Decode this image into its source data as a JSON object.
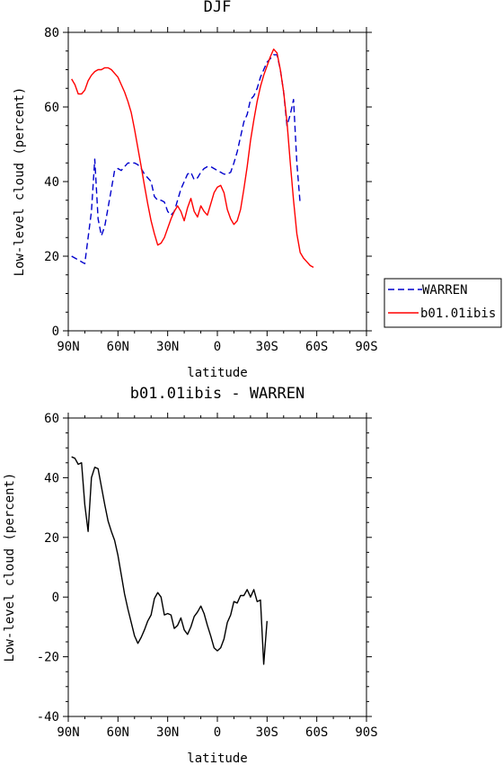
{
  "chart_data": [
    {
      "type": "line",
      "title": "DJF",
      "xlabel": "latitude",
      "ylabel": "Low-level cloud (percent)",
      "xlim": [
        90,
        -90
      ],
      "ylim": [
        0,
        80
      ],
      "x_ticks": [
        90,
        60,
        30,
        0,
        -30,
        -60,
        -90
      ],
      "x_tick_labels": [
        "90N",
        "60N",
        "30N",
        "0",
        "30S",
        "60S",
        "90S"
      ],
      "y_ticks": [
        0,
        20,
        40,
        60,
        80
      ],
      "y_tick_labels": [
        "0",
        "20",
        "40",
        "60",
        "80"
      ],
      "legend_position": "right",
      "series": [
        {
          "name": "WARREN",
          "color": "#0000cc",
          "dash": "dashed",
          "x": [
            88,
            84,
            80,
            76,
            74,
            72,
            70,
            68,
            66,
            64,
            62,
            60,
            58,
            56,
            54,
            52,
            50,
            48,
            46,
            44,
            42,
            40,
            38,
            36,
            34,
            32,
            30,
            28,
            26,
            24,
            22,
            20,
            18,
            16,
            14,
            12,
            10,
            8,
            6,
            4,
            2,
            0,
            -2,
            -4,
            -6,
            -8,
            -10,
            -12,
            -14,
            -16,
            -18,
            -20,
            -22,
            -24,
            -26,
            -28,
            -30,
            -32,
            -34,
            -36,
            -38,
            -40,
            -42,
            -44,
            -46,
            -48,
            -50,
            -52,
            -54,
            -56,
            -58,
            -60,
            -62,
            -64,
            -66,
            -68,
            -70,
            -72,
            -74,
            -76,
            -78
          ],
          "y": [
            20,
            19,
            18,
            32,
            46,
            30,
            25.5,
            28,
            33,
            38,
            43,
            43.5,
            43,
            44,
            45,
            45,
            45,
            44.5,
            43.5,
            42,
            41,
            40,
            36,
            35,
            35,
            34.5,
            32,
            31,
            32,
            35,
            38,
            40,
            42,
            42.5,
            40.5,
            41,
            42.5,
            43.5,
            44,
            44,
            43.5,
            43,
            42.5,
            42,
            42,
            42.5,
            45,
            48,
            52,
            56,
            58,
            62,
            63,
            65,
            68,
            70,
            72,
            73,
            74,
            74,
            70,
            64,
            55,
            58,
            62,
            45,
            34,
            null,
            null,
            null,
            null,
            null,
            null,
            null,
            null,
            null,
            null,
            null,
            null,
            null,
            null
          ]
        },
        {
          "name": "b01.01ibis",
          "color": "#ff0000",
          "dash": "solid",
          "x": [
            88,
            86,
            84,
            82,
            80,
            78,
            76,
            74,
            72,
            70,
            68,
            66,
            64,
            62,
            60,
            58,
            56,
            54,
            52,
            50,
            48,
            46,
            44,
            42,
            40,
            38,
            36,
            34,
            32,
            30,
            28,
            26,
            24,
            22,
            20,
            18,
            16,
            14,
            12,
            10,
            8,
            6,
            4,
            2,
            0,
            -2,
            -4,
            -6,
            -8,
            -10,
            -12,
            -14,
            -16,
            -18,
            -20,
            -22,
            -24,
            -26,
            -28,
            -30,
            -32,
            -34,
            -36,
            -38,
            -40,
            -42,
            -44,
            -46,
            -48,
            -50,
            -52,
            -54,
            -56,
            -58,
            -60,
            -62,
            -64,
            -66,
            -68,
            -70,
            -72,
            -74,
            -76,
            -78,
            -80,
            -82,
            -84,
            -86,
            -88
          ],
          "y": [
            67.5,
            66,
            63.5,
            63.5,
            64.5,
            67,
            68.5,
            69.5,
            70,
            70,
            70.5,
            70.5,
            70,
            69,
            68,
            66,
            64,
            61.5,
            58.5,
            54,
            49,
            44,
            39,
            34,
            29.5,
            26,
            23,
            23.5,
            25,
            27.5,
            30,
            32,
            33.5,
            32,
            29.5,
            33,
            35.5,
            32,
            30.5,
            33.5,
            32,
            31,
            34,
            37,
            38.5,
            39,
            37,
            32.5,
            30,
            28.5,
            29.5,
            32.5,
            38,
            44,
            51,
            56.5,
            61.5,
            65.5,
            68.5,
            71,
            73.5,
            75.5,
            74.5,
            70,
            64,
            56,
            45,
            35,
            26,
            21,
            19.5,
            18.5,
            17.5,
            17,
            null,
            null,
            null,
            null,
            null,
            null,
            null,
            null,
            null,
            null,
            null,
            null,
            null,
            null,
            null
          ]
        }
      ]
    },
    {
      "type": "line",
      "title": "b01.01ibis - WARREN",
      "xlabel": "latitude",
      "ylabel": "Low-level cloud (percent)",
      "xlim": [
        90,
        -90
      ],
      "ylim": [
        -40,
        60
      ],
      "x_ticks": [
        90,
        60,
        30,
        0,
        -30,
        -60,
        -90
      ],
      "x_tick_labels": [
        "90N",
        "60N",
        "30N",
        "0",
        "30S",
        "60S",
        "90S"
      ],
      "y_ticks": [
        -40,
        -20,
        0,
        20,
        40,
        60
      ],
      "y_tick_labels": [
        "-40",
        "-20",
        "0",
        "20",
        "40",
        "60"
      ],
      "series": [
        {
          "name": "",
          "color": "#000000",
          "dash": "solid",
          "x": [
            88,
            86,
            84,
            82,
            80,
            78,
            76,
            74,
            72,
            70,
            68,
            66,
            64,
            62,
            60,
            58,
            56,
            54,
            52,
            50,
            48,
            46,
            44,
            42,
            40,
            38,
            36,
            34,
            32,
            30,
            28,
            26,
            24,
            22,
            20,
            18,
            16,
            14,
            12,
            10,
            8,
            6,
            4,
            2,
            0,
            -2,
            -4,
            -6,
            -8,
            -10,
            -12,
            -14,
            -16,
            -18,
            -20,
            -22,
            -24,
            -26,
            -28,
            -30,
            -32,
            -34,
            -36,
            -38,
            -40,
            -42,
            -44,
            -46,
            -48,
            -50,
            -52,
            -54,
            -56,
            -58,
            -60,
            -62,
            -64,
            -66,
            -68,
            -70,
            -72,
            -74,
            -76,
            -78
          ],
          "y": [
            47,
            46.5,
            44.5,
            45,
            31,
            22,
            40,
            43.5,
            43,
            37,
            31,
            25.5,
            22,
            19,
            14,
            7.5,
            1,
            -4,
            -8.5,
            -13,
            -15.5,
            -13.5,
            -11,
            -8,
            -6,
            -0.5,
            1.5,
            0,
            -6,
            -5.5,
            -6,
            -10.5,
            -9.5,
            -7,
            -11,
            -12.5,
            -10,
            -6.5,
            -5,
            -3,
            -5.5,
            -9.5,
            -13,
            -17,
            -18,
            -17,
            -14,
            -8.5,
            -6,
            -1.5,
            -2,
            0.5,
            0.5,
            2.5,
            0,
            2.5,
            -1.5,
            -1,
            -22.5,
            -8,
            null,
            null,
            null,
            null,
            null,
            null,
            null,
            null,
            null,
            null,
            null,
            null,
            null,
            null,
            null,
            null,
            null,
            null,
            null,
            null,
            null,
            null,
            null,
            null
          ]
        }
      ]
    }
  ]
}
